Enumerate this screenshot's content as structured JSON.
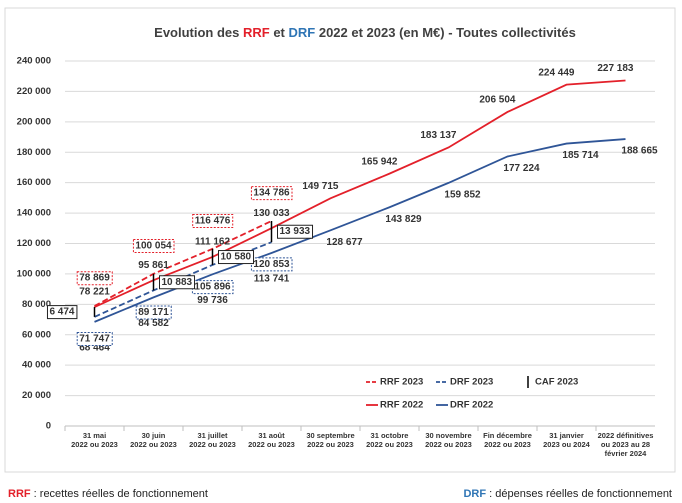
{
  "chart_data": {
    "type": "line",
    "title_parts": [
      "Evolution des ",
      "RRF",
      " et ",
      "DRF",
      " 2022 et 2023 (en M€) - Toutes collectivités"
    ],
    "categories": [
      [
        "31 mai",
        "2022 ou 2023"
      ],
      [
        "30 juin",
        "2022 ou 2023"
      ],
      [
        "31 juillet",
        "2022 ou 2023"
      ],
      [
        "31 août",
        "2022 ou 2023"
      ],
      [
        "30 septembre",
        "2022 ou 2023"
      ],
      [
        "31 octobre",
        "2022 ou 2023"
      ],
      [
        "30 novembre",
        "2022 ou 2023"
      ],
      [
        "Fin décembre",
        "2022 ou 2023"
      ],
      [
        "31 janvier",
        "2023 ou 2024"
      ],
      [
        "2022 définitives",
        "ou 2023 au 28",
        "février 2024"
      ]
    ],
    "ylim": [
      0,
      240000
    ],
    "yticks": [
      0,
      {
        "value": 20000,
        "label": "20 000"
      },
      {
        "value": 40000,
        "label": "40 000"
      },
      {
        "value": 60000,
        "label": "60 000"
      },
      {
        "value": 80000,
        "label": "80 000"
      },
      {
        "value": 100000,
        "label": "100 000"
      },
      {
        "value": 120000,
        "label": "120 000"
      },
      {
        "value": 140000,
        "label": "140 000"
      },
      {
        "value": 160000,
        "label": "160 000"
      },
      {
        "value": 180000,
        "label": "180 000"
      },
      {
        "value": 200000,
        "label": "200 000"
      },
      {
        "value": 220000,
        "label": "220 000"
      },
      {
        "value": 240000,
        "label": "240 000"
      }
    ],
    "grid": true,
    "series": [
      {
        "name": "RRF 2022",
        "color": "#e3202a",
        "style": "solid",
        "values": [
          78221,
          95861,
          111162,
          130033,
          149715,
          165942,
          183137,
          206504,
          224449,
          227183
        ],
        "value_labels": [
          "78 221",
          "95 861",
          "111 162",
          "130 033",
          "149 715",
          "165 942",
          "183 137",
          "206 504",
          "224 449",
          "227 183"
        ]
      },
      {
        "name": "DRF 2022",
        "color": "#2f5597",
        "style": "solid",
        "values": [
          68464,
          84582,
          99736,
          113741,
          128677,
          143829,
          159852,
          177224,
          185714,
          188665
        ],
        "value_labels": [
          "68 464",
          "84 582",
          "99 736",
          "113 741",
          "128 677",
          "143 829",
          "159 852",
          "177 224",
          "185 714",
          "188 665"
        ]
      },
      {
        "name": "RRF 2023",
        "color": "#e3202a",
        "style": "dashed",
        "values": [
          78869,
          100054,
          116476,
          134786,
          null,
          null,
          null,
          null,
          null,
          null
        ],
        "value_labels": [
          "78 869",
          "100 054",
          "116 476",
          "134 786",
          null,
          null,
          null,
          null,
          null,
          null
        ]
      },
      {
        "name": "DRF 2023",
        "color": "#2f5597",
        "style": "dashed",
        "values": [
          71747,
          89171,
          105896,
          120853,
          null,
          null,
          null,
          null,
          null,
          null
        ],
        "value_labels": [
          "71 747",
          "89 171",
          "105 896",
          "120 853",
          null,
          null,
          null,
          null,
          null,
          null
        ]
      },
      {
        "name": "CAF 2023",
        "color": "#000000",
        "style": "bar",
        "values": [
          6474,
          10883,
          10580,
          13933,
          null,
          null,
          null,
          null,
          null,
          null
        ],
        "value_labels": [
          "6 474",
          "10 883",
          "10 580",
          "13 933",
          null,
          null,
          null,
          null,
          null,
          null
        ]
      }
    ],
    "footer_left": [
      "RRF",
      " : recettes réelles de fonctionnement"
    ],
    "footer_right": [
      "DRF",
      " : dépenses réelles de fonctionnement"
    ]
  }
}
